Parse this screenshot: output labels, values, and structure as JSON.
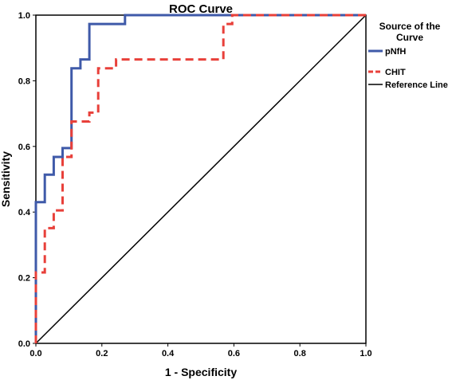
{
  "chart_data": {
    "type": "line",
    "title": "ROC Curve",
    "xlabel": "1 - Specificity",
    "ylabel": "Sensitivity",
    "xlim": [
      0,
      1
    ],
    "ylim": [
      0,
      1
    ],
    "xticks": [
      "0.0",
      "0.2",
      "0.4",
      "0.6",
      "0.8",
      "1.0"
    ],
    "yticks": [
      "0.0",
      "0.2",
      "0.4",
      "0.6",
      "0.8",
      "1.0"
    ],
    "grid": false,
    "legend": {
      "title": "Source of the Curve",
      "placement": "top-right, outside plot"
    },
    "series": [
      {
        "name": "pNfH",
        "color": "#3f5aa9",
        "style": "solid",
        "points": [
          [
            0.0,
            0.0
          ],
          [
            0.0,
            0.24
          ],
          [
            0.0,
            0.43
          ],
          [
            0.027,
            0.43
          ],
          [
            0.027,
            0.514
          ],
          [
            0.054,
            0.514
          ],
          [
            0.054,
            0.568
          ],
          [
            0.081,
            0.568
          ],
          [
            0.081,
            0.595
          ],
          [
            0.108,
            0.595
          ],
          [
            0.108,
            0.838
          ],
          [
            0.135,
            0.838
          ],
          [
            0.135,
            0.865
          ],
          [
            0.162,
            0.865
          ],
          [
            0.162,
            0.973
          ],
          [
            0.27,
            0.973
          ],
          [
            0.27,
            1.0
          ],
          [
            1.0,
            1.0
          ]
        ]
      },
      {
        "name": "CHIT",
        "color": "#e8403a",
        "style": "dashed",
        "points": [
          [
            0.0,
            0.0
          ],
          [
            0.0,
            0.216
          ],
          [
            0.027,
            0.216
          ],
          [
            0.027,
            0.351
          ],
          [
            0.054,
            0.351
          ],
          [
            0.054,
            0.405
          ],
          [
            0.081,
            0.405
          ],
          [
            0.081,
            0.568
          ],
          [
            0.108,
            0.568
          ],
          [
            0.108,
            0.676
          ],
          [
            0.162,
            0.676
          ],
          [
            0.162,
            0.703
          ],
          [
            0.189,
            0.703
          ],
          [
            0.189,
            0.838
          ],
          [
            0.243,
            0.838
          ],
          [
            0.243,
            0.865
          ],
          [
            0.568,
            0.865
          ],
          [
            0.568,
            0.973
          ],
          [
            0.595,
            0.973
          ],
          [
            0.595,
            1.0
          ],
          [
            1.0,
            1.0
          ]
        ]
      },
      {
        "name": "Reference Line",
        "color": "#000000",
        "style": "solid",
        "points": [
          [
            0.0,
            0.0
          ],
          [
            1.0,
            1.0
          ]
        ]
      }
    ]
  }
}
